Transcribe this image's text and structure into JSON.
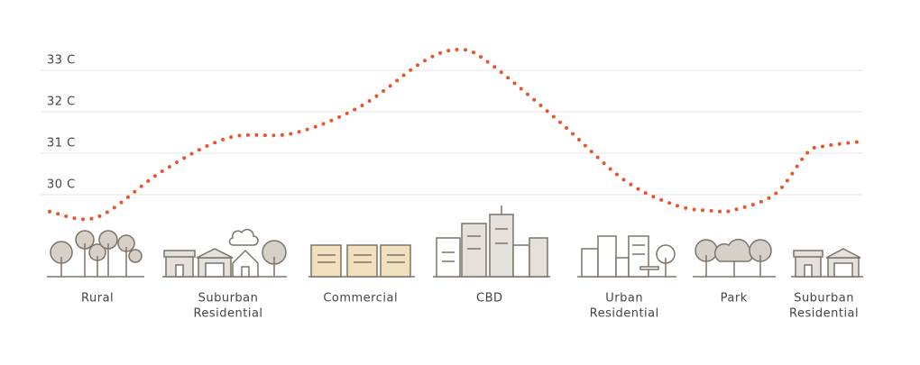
{
  "chart_data": {
    "type": "line",
    "x": [
      0,
      5.9,
      13.9,
      22,
      30,
      38.3,
      46.1,
      50.6,
      54.2,
      62.8,
      70.8,
      77.2,
      81.7,
      84.3,
      89.4,
      93.3,
      95.4,
      100
    ],
    "series": [
      {
        "color": "#e8552b",
        "values": [
          29.59,
          29.46,
          30.57,
          31.37,
          31.48,
          32.13,
          33.22,
          33.5,
          33.17,
          31.76,
          30.35,
          29.74,
          29.61,
          29.63,
          30.02,
          31.0,
          31.17,
          31.28
        ]
      }
    ],
    "xlim": [
      0,
      100
    ],
    "ylim": [
      29.1,
      33.85
    ],
    "yticks": [
      {
        "value": 30,
        "label": "30 C"
      },
      {
        "value": 31,
        "label": "31 C"
      },
      {
        "value": 32,
        "label": "32 C"
      },
      {
        "value": 33,
        "label": "33 C"
      }
    ],
    "grid": true,
    "zones": [
      {
        "x": 5.9,
        "label": [
          "Rural"
        ]
      },
      {
        "x": 22,
        "label": [
          "Suburban",
          "Residential"
        ]
      },
      {
        "x": 38.3,
        "label": [
          "Commercial"
        ]
      },
      {
        "x": 54.2,
        "label": [
          "CBD"
        ]
      },
      {
        "x": 70.8,
        "label": [
          "Urban",
          "Residential"
        ]
      },
      {
        "x": 84.3,
        "label": [
          "Park"
        ]
      },
      {
        "x": 95.4,
        "label": [
          "Suburban",
          "Residential"
        ]
      }
    ]
  }
}
